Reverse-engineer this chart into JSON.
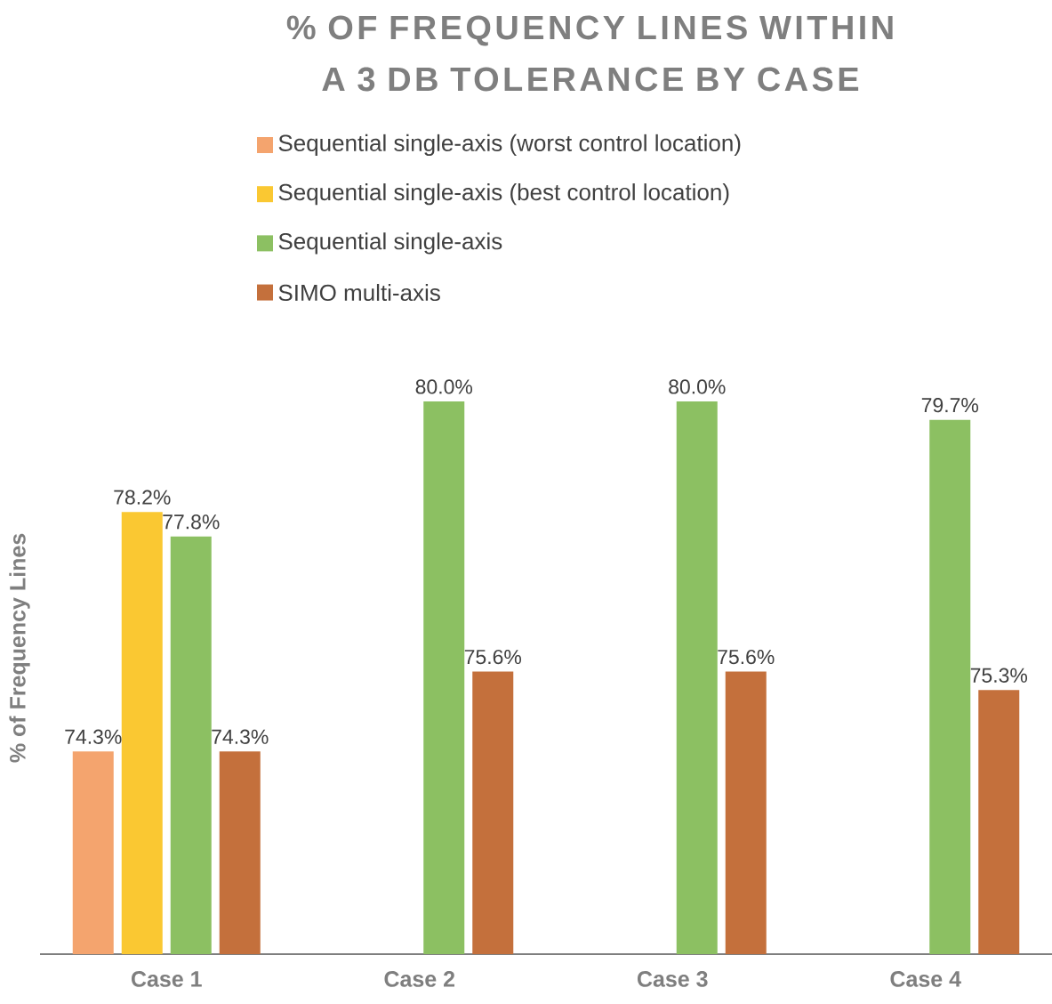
{
  "chart_data": {
    "type": "bar",
    "title": "% OF FREQUENCY LINES WITHIN A 3 DB TOLERANCE BY CASE",
    "ylabel": "% of Frequency Lines",
    "categories": [
      "Case 1",
      "Case 2",
      "Case 3",
      "Case 4"
    ],
    "ylim": [
      71,
      80
    ],
    "legend": "top",
    "series": [
      {
        "name": "Sequential single-axis (worst control location)",
        "color": "#f4a46e",
        "values": [
          74.3,
          null,
          null,
          null
        ],
        "value_labels": [
          "74.3%",
          null,
          null,
          null
        ]
      },
      {
        "name": "Sequential single-axis (best control location)",
        "color": "#fac832",
        "values": [
          78.2,
          null,
          null,
          null
        ],
        "value_labels": [
          "78.2%",
          null,
          null,
          null
        ]
      },
      {
        "name": "Sequential single-axis",
        "color": "#8cc062",
        "values": [
          77.8,
          80.0,
          80.0,
          79.7
        ],
        "value_labels": [
          "77.8%",
          "80.0%",
          "80.0%",
          "79.7%"
        ]
      },
      {
        "name": "SIMO multi-axis",
        "color": "#c4703c",
        "values": [
          74.3,
          75.6,
          75.6,
          75.3
        ],
        "value_labels": [
          "74.3%",
          "75.6%",
          "75.6%",
          "75.3%"
        ]
      }
    ]
  }
}
